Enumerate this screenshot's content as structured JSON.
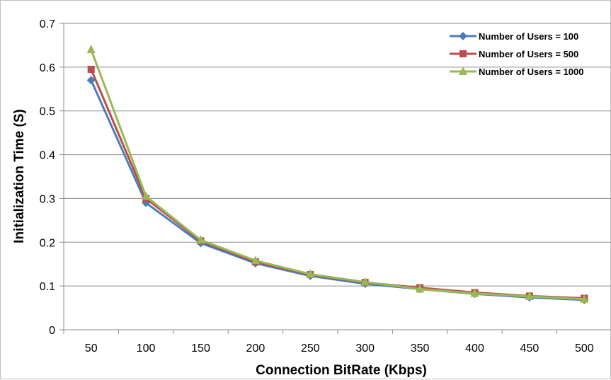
{
  "chart_data": {
    "type": "line",
    "title": "",
    "xlabel": "Connection BitRate (Kbps)",
    "ylabel": "Initialization Time (S)",
    "categories": [
      "50",
      "100",
      "150",
      "200",
      "250",
      "300",
      "350",
      "400",
      "450",
      "500"
    ],
    "ylim": [
      0,
      0.7
    ],
    "yticks": [
      "0",
      "0.1",
      "0.2",
      "0.3",
      "0.4",
      "0.5",
      "0.6",
      "0.7"
    ],
    "grid": true,
    "legend_position": "top-right",
    "series": [
      {
        "name": "Number of Users = 100",
        "color": "#4a7ebb",
        "marker": "diamond",
        "values": [
          0.57,
          0.29,
          0.198,
          0.152,
          0.123,
          0.105,
          0.093,
          0.082,
          0.074,
          0.068
        ]
      },
      {
        "name": "Number of Users = 500",
        "color": "#be4b48",
        "marker": "square",
        "values": [
          0.595,
          0.3,
          0.203,
          0.155,
          0.126,
          0.108,
          0.096,
          0.085,
          0.077,
          0.072
        ]
      },
      {
        "name": "Number of Users = 1000",
        "color": "#98b954",
        "marker": "triangle",
        "values": [
          0.64,
          0.305,
          0.205,
          0.158,
          0.127,
          0.109,
          0.093,
          0.083,
          0.076,
          0.07
        ]
      }
    ]
  }
}
